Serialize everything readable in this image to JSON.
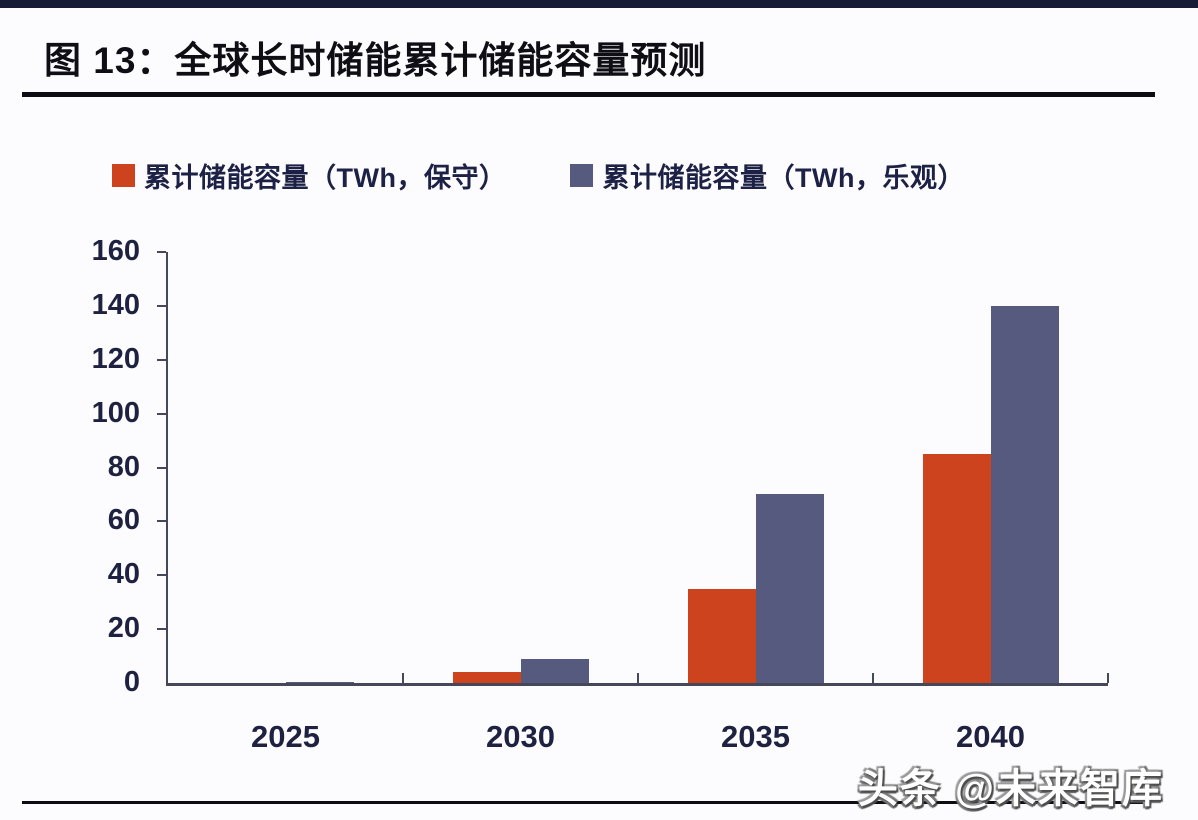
{
  "page": {
    "title": "图 13：全球长时储能累计储能容量预测",
    "watermark": "头条 @未来智库"
  },
  "colors": {
    "top_bar": "#161c36",
    "rule": "#0c0c12",
    "axis": "#44485a",
    "axis_text": "#1e2240",
    "conservative_red": "#cc431d",
    "optimistic_slate": "#565a7e",
    "background": "#fcfcfe",
    "watermark_fill": "#ffffff"
  },
  "chart_data": {
    "type": "bar",
    "title": "全球长时储能累计储能容量预测",
    "categories": [
      "2025",
      "2030",
      "2035",
      "2040"
    ],
    "series": [
      {
        "name": "累计储能容量（TWh，保守）",
        "color": "#cc431d",
        "values": [
          0.1,
          4,
          35,
          85
        ]
      },
      {
        "name": "累计储能容量（TWh，乐观）",
        "color": "#565a7e",
        "values": [
          0.2,
          9,
          70,
          140
        ]
      }
    ],
    "xlabel": "",
    "ylabel": "",
    "ylim": [
      0,
      160
    ],
    "yticks": [
      0,
      20,
      40,
      60,
      80,
      100,
      120,
      140,
      160
    ],
    "grid": false,
    "legend_position": "top"
  }
}
